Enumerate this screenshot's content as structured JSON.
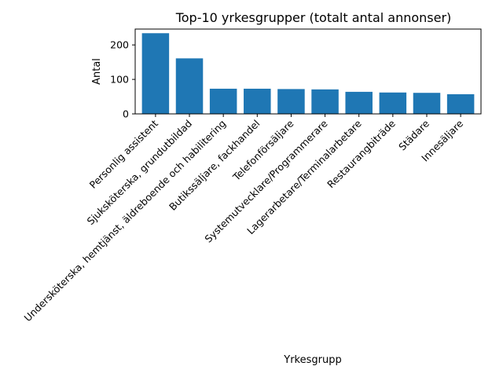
{
  "chart_data": {
    "type": "bar",
    "title": "Top-10 yrkesgrupper (totalt antal annonser)",
    "xlabel": "Yrkesgrupp",
    "ylabel": "Antal",
    "categories": [
      "Personlig assistent",
      "Sjuksköterska, grundutbildad",
      "Undersköterska, hemtjänst, äldreboende och habilitering",
      "Butikssäljare, fackhandel",
      "Telefonförsäljare",
      "Systemutvecklare/Programmerare",
      "Lagerarbetare/Terminalarbetare",
      "Restaurangbiträde",
      "Städare",
      "Innesäljare"
    ],
    "values": [
      234,
      161,
      73,
      73,
      72,
      71,
      64,
      62,
      61,
      57
    ],
    "ylim": [
      0,
      246
    ],
    "yticks": [
      0,
      100,
      200
    ],
    "bar_color": "#1f77b4",
    "grid": false,
    "legend": false
  }
}
